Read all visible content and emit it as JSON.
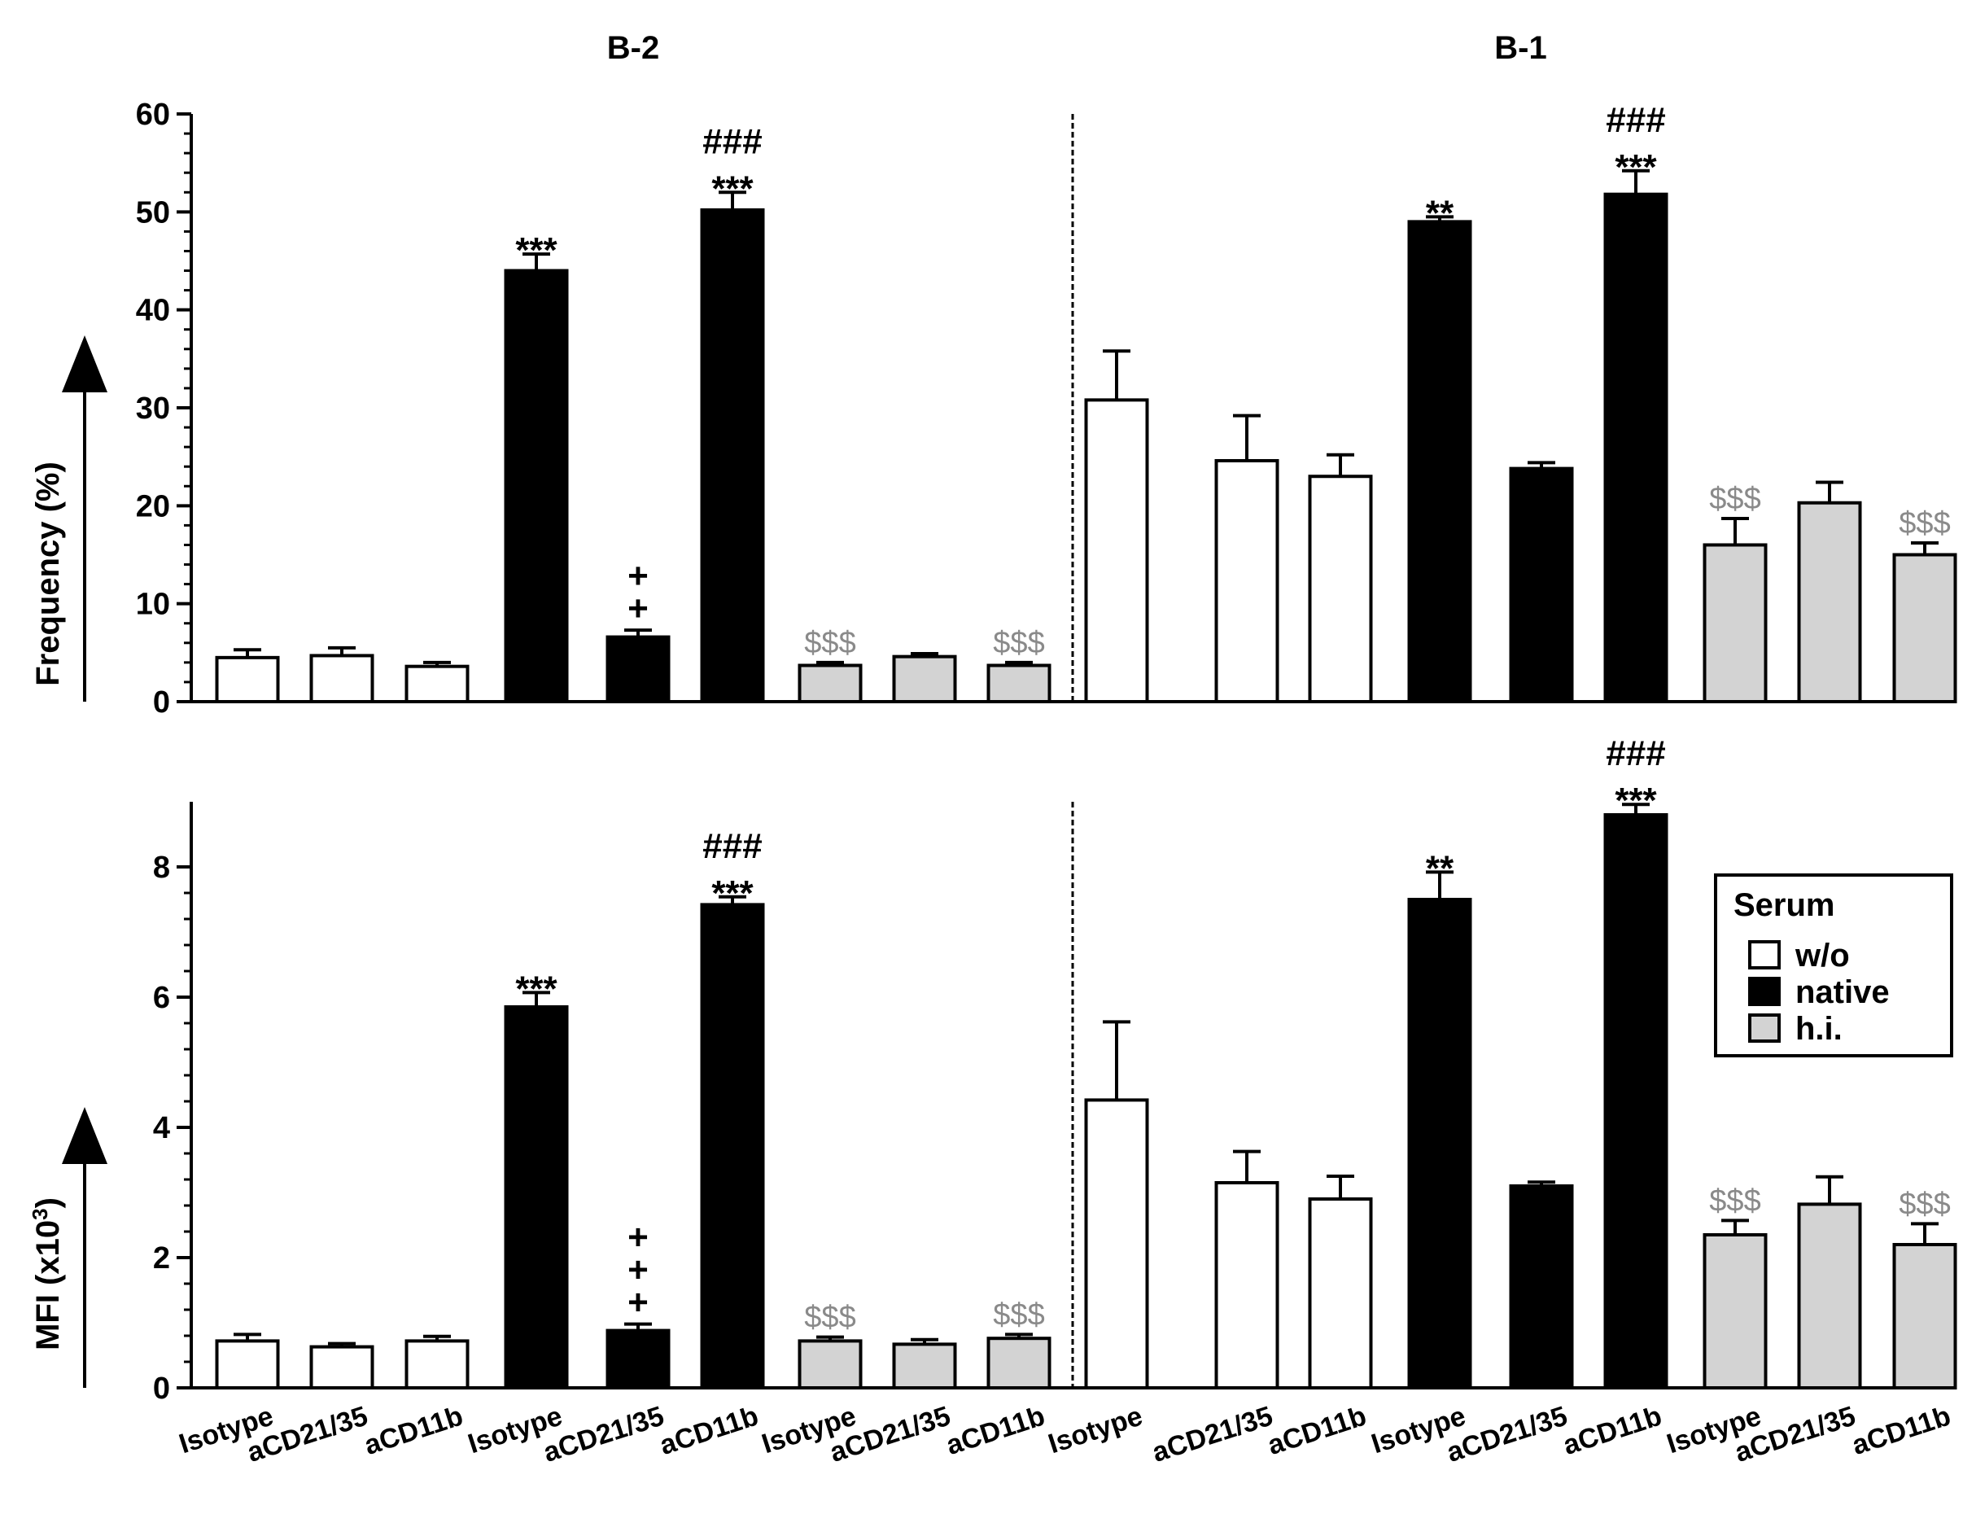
{
  "chart_data": {
    "type": "bar",
    "groups": [
      "B-2",
      "B-1"
    ],
    "categories": [
      "Isotype",
      "aCD21/35",
      "aCD11b",
      "Isotype",
      "aCD21/35",
      "aCD11b",
      "Isotype",
      "aCD21/35",
      "aCD11b"
    ],
    "serum_conditions": [
      "w/o",
      "w/o",
      "w/o",
      "native",
      "native",
      "native",
      "h.i.",
      "h.i.",
      "h.i."
    ],
    "colors": {
      "w/o": "#ffffff",
      "native": "#000000",
      "h.i.": "#d3d3d3",
      "annotation_gray": "#8a8a8a"
    },
    "legend": {
      "title": "Serum",
      "entries": [
        "w/o",
        "native",
        "h.i."
      ],
      "placement": "right-middle"
    },
    "panels": [
      {
        "ylabel": "Frequency (%)",
        "ylim": [
          0,
          60
        ],
        "yticks": [
          "0",
          "10",
          "20",
          "30",
          "40",
          "50",
          "60"
        ],
        "groups": [
          {
            "title": "B-2",
            "values": [
              4.5,
              4.7,
              3.6,
              44,
              6.6,
              50.2,
              3.7,
              4.6,
              3.7
            ],
            "errors": [
              0.8,
              0.8,
              0.4,
              1.7,
              0.7,
              1.8,
              0.3,
              0.3,
              0.3
            ],
            "annotations": [
              "",
              "",
              "",
              "***",
              "+\n+",
              "###\n***",
              "$$$",
              "",
              "$$$"
            ]
          },
          {
            "title": "B-1",
            "values": [
              30.8,
              24.6,
              23,
              49,
              23.8,
              51.8,
              16,
              20.3,
              15
            ],
            "errors": [
              5,
              4.6,
              2.2,
              0.5,
              0.6,
              2.4,
              2.7,
              2.1,
              1.2
            ],
            "annotations": [
              "",
              "",
              "",
              "**",
              "",
              "###\n***",
              "$$$",
              "",
              "$$$"
            ]
          }
        ]
      },
      {
        "ylabel": "MFI (x10",
        "ylabel_sup": "3",
        "ylabel_end": ")",
        "ylim": [
          0,
          9
        ],
        "yticks": [
          "0",
          "2",
          "4",
          "6",
          "8"
        ],
        "groups": [
          {
            "title": "B-2",
            "values": [
              0.72,
              0.63,
              0.72,
              5.85,
              0.88,
              7.42,
              0.72,
              0.67,
              0.76
            ],
            "errors": [
              0.1,
              0.05,
              0.07,
              0.22,
              0.1,
              0.12,
              0.06,
              0.07,
              0.06
            ],
            "annotations": [
              "",
              "",
              "",
              "***",
              "+\n+\n+",
              "###\n***",
              "$$$",
              "",
              "$$$"
            ]
          },
          {
            "title": "B-1",
            "values": [
              4.42,
              3.15,
              2.9,
              7.5,
              3.1,
              8.8,
              2.35,
              2.82,
              2.2
            ],
            "errors": [
              1.2,
              0.48,
              0.35,
              0.42,
              0.06,
              0.16,
              0.22,
              0.42,
              0.32
            ],
            "annotations": [
              "",
              "",
              "",
              "**",
              "",
              "###\n***",
              "$$$",
              "",
              "$$$"
            ]
          }
        ]
      }
    ]
  }
}
